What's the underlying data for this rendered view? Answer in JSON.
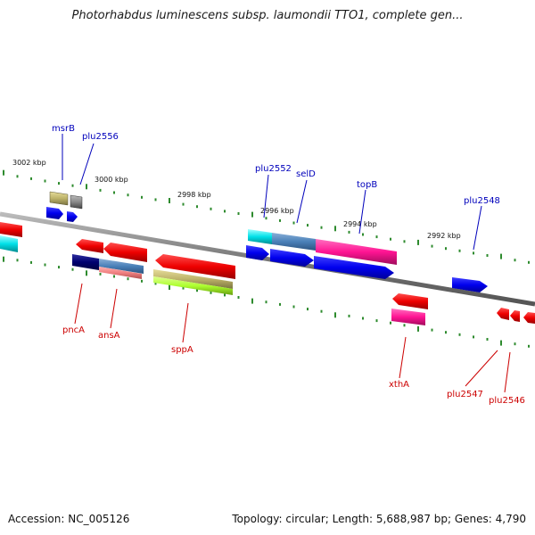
{
  "title": "Photorhabdus luminescens subsp. laumondii TTO1, complete gen...",
  "footer": {
    "accession": "Accession: NC_005126",
    "topology": "Topology: circular; Length: 5,688,987 bp; Genes: 4,790"
  },
  "colors": {
    "backbone": "#888888",
    "tick": "#2e8b2e",
    "label_top": "#0000bb",
    "label_bottom": "#cc0000"
  },
  "scale_labels": [
    "3002 kbp",
    "3000 kbp",
    "2998 kbp",
    "2996 kbp",
    "2994 kbp",
    "2992 kbp"
  ],
  "genes_top": [
    "msrB",
    "plu2556",
    "plu2552",
    "selD",
    "topB",
    "plu2548"
  ],
  "genes_bottom": [
    "pncA",
    "ansA",
    "sppA",
    "xthA",
    "plu2547",
    "plu2546"
  ]
}
